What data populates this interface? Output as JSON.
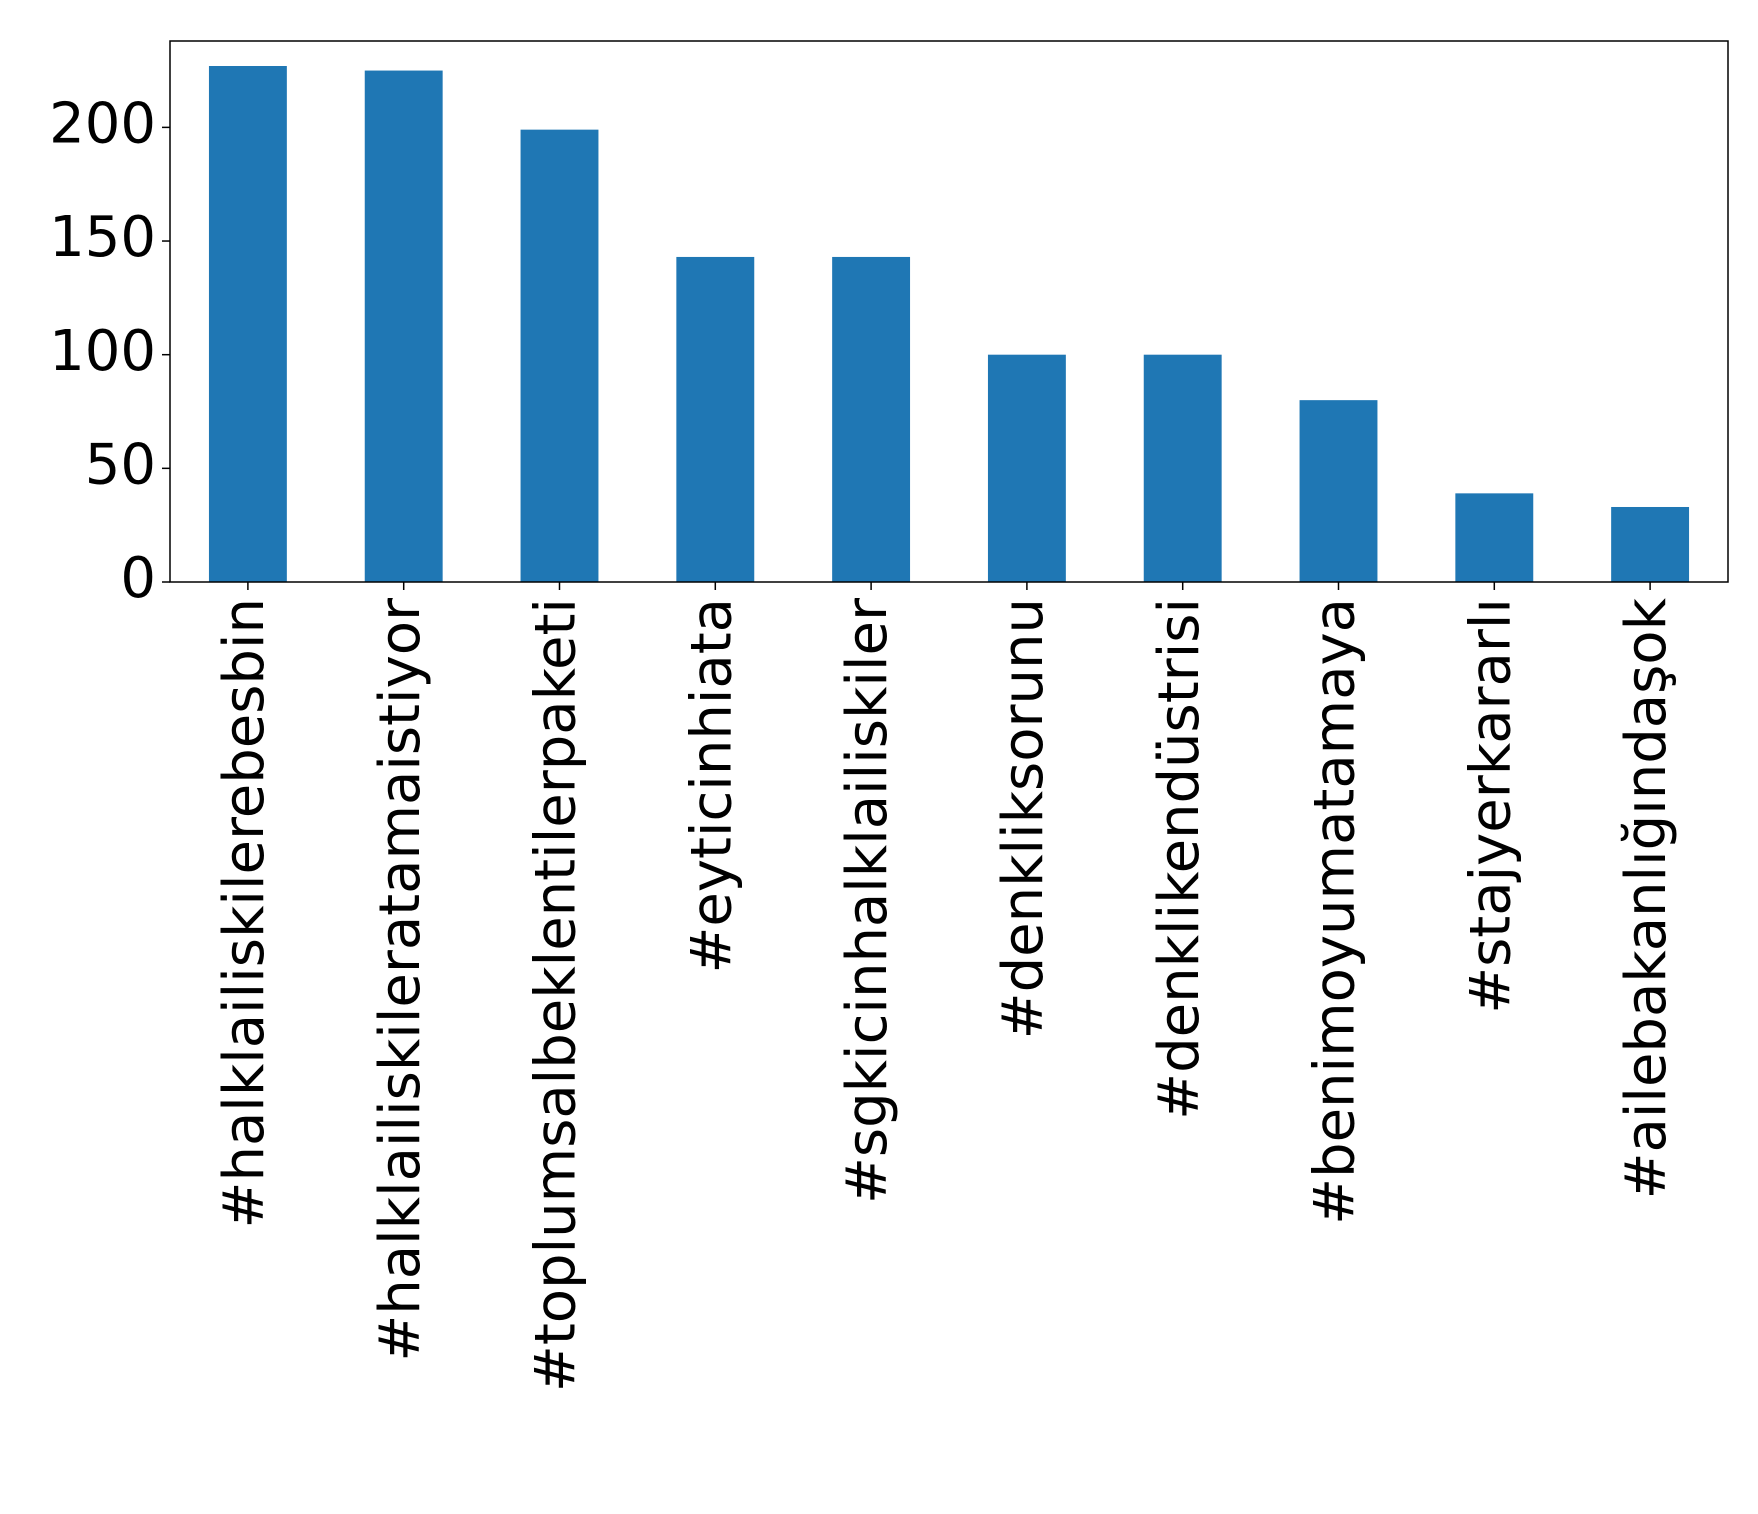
{
  "chart_data": {
    "type": "bar",
    "categories": [
      "#halklailiskilerebesbin",
      "#halklailiskileratamaistiyor",
      "#toplumsalbeklentilerpaketi",
      "#eyticinhiata",
      "#sgkicinhalklailiskiler",
      "#denkliksorunu",
      "#denklikendüstrisi",
      "#benimoyumatamaya",
      "#stajyerkararlı",
      "#ailebakanlığındaşok"
    ],
    "values": [
      227,
      225,
      199,
      143,
      143,
      100,
      100,
      80,
      39,
      33
    ],
    "color": "#1f77b4",
    "ylim": [
      0,
      238
    ],
    "yticks": [
      0,
      50,
      100,
      150,
      200
    ],
    "grid": false
  }
}
